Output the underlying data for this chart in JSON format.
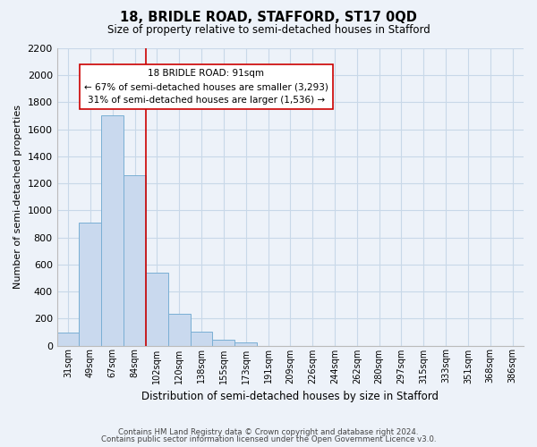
{
  "title": "18, BRIDLE ROAD, STAFFORD, ST17 0QD",
  "subtitle": "Size of property relative to semi-detached houses in Stafford",
  "xlabel": "Distribution of semi-detached houses by size in Stafford",
  "ylabel": "Number of semi-detached properties",
  "bin_labels": [
    "31sqm",
    "49sqm",
    "67sqm",
    "84sqm",
    "102sqm",
    "120sqm",
    "138sqm",
    "155sqm",
    "173sqm",
    "191sqm",
    "209sqm",
    "226sqm",
    "244sqm",
    "262sqm",
    "280sqm",
    "297sqm",
    "315sqm",
    "333sqm",
    "351sqm",
    "368sqm",
    "386sqm"
  ],
  "bar_values": [
    97,
    912,
    1706,
    1258,
    541,
    233,
    103,
    40,
    20,
    0,
    0,
    0,
    0,
    0,
    0,
    0,
    0,
    0,
    0,
    0,
    0
  ],
  "bar_color": "#c9d9ee",
  "bar_edge_color": "#7aafd4",
  "vline_x": 3.5,
  "vline_color": "#cc0000",
  "annotation_title": "18 BRIDLE ROAD: 91sqm",
  "annotation_line1": "← 67% of semi-detached houses are smaller (3,293)",
  "annotation_line2": "31% of semi-detached houses are larger (1,536) →",
  "annotation_box_facecolor": "#ffffff",
  "annotation_box_edgecolor": "#cc0000",
  "ylim": [
    0,
    2200
  ],
  "yticks": [
    0,
    200,
    400,
    600,
    800,
    1000,
    1200,
    1400,
    1600,
    1800,
    2000,
    2200
  ],
  "footer1": "Contains HM Land Registry data © Crown copyright and database right 2024.",
  "footer2": "Contains public sector information licensed under the Open Government Licence v3.0.",
  "grid_color": "#c8d8e8",
  "background_color": "#edf2f9"
}
